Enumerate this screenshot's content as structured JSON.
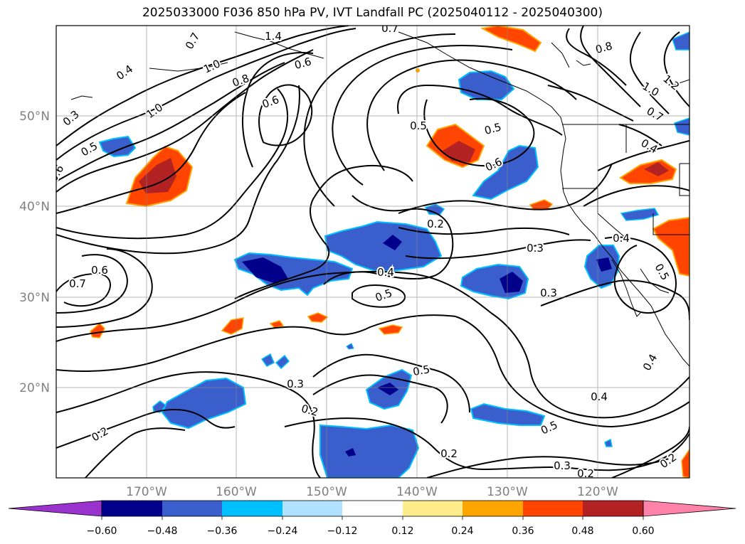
{
  "title": "2025033000 F036 850 hPa PV, IVT Landfall PC (2025040112 - 2025040300)",
  "lon_labels": [
    "170°W",
    "160°W",
    "150°W",
    "140°W",
    "130°W",
    "120°W"
  ],
  "lat_labels": [
    "50°N",
    "40°N",
    "30°N",
    "20°N"
  ],
  "colorbar": {
    "ticks": [
      "−0.60",
      "−0.48",
      "−0.36",
      "−0.24",
      "−0.12",
      "0.12",
      "0.24",
      "0.36",
      "0.48",
      "0.60"
    ],
    "colors": [
      "#9a32cd",
      "#00008b",
      "#3a5fcd",
      "#00bfff",
      "#b0e2ff",
      "#ffffff",
      "#ffec8b",
      "#ffa500",
      "#ff4500",
      "#b22222",
      "#ff82ab"
    ]
  },
  "contour_labels": [
    {
      "text": "1.4"
    },
    {
      "text": "0.7"
    },
    {
      "text": "0.4"
    },
    {
      "text": "1.0"
    },
    {
      "text": "0.8"
    },
    {
      "text": "0.6"
    },
    {
      "text": "0.3"
    },
    {
      "text": "1.0"
    },
    {
      "text": "0.5"
    },
    {
      "text": "0.6"
    },
    {
      "text": "0.6"
    },
    {
      "text": "0.7"
    },
    {
      "text": "0.5"
    },
    {
      "text": "0.5"
    },
    {
      "text": "0.6"
    },
    {
      "text": "0.2"
    },
    {
      "text": "0.3"
    },
    {
      "text": "0.4"
    },
    {
      "text": "0.5"
    },
    {
      "text": "0.3"
    },
    {
      "text": "0.8"
    },
    {
      "text": "1.2"
    },
    {
      "text": "1.0"
    },
    {
      "text": "0.7"
    },
    {
      "text": "0.4"
    },
    {
      "text": "0.4"
    },
    {
      "text": "0.5"
    },
    {
      "text": "0.4"
    },
    {
      "text": "0.3"
    },
    {
      "text": "0.2"
    },
    {
      "text": "0.5"
    },
    {
      "text": "0.4"
    },
    {
      "text": "0.5"
    },
    {
      "text": "0.2"
    },
    {
      "text": "0.3"
    },
    {
      "text": "0.2"
    },
    {
      "text": "0.2"
    },
    {
      "text": "0.2"
    },
    {
      "text": "0.7"
    },
    {
      "text": "0.6"
    }
  ]
}
